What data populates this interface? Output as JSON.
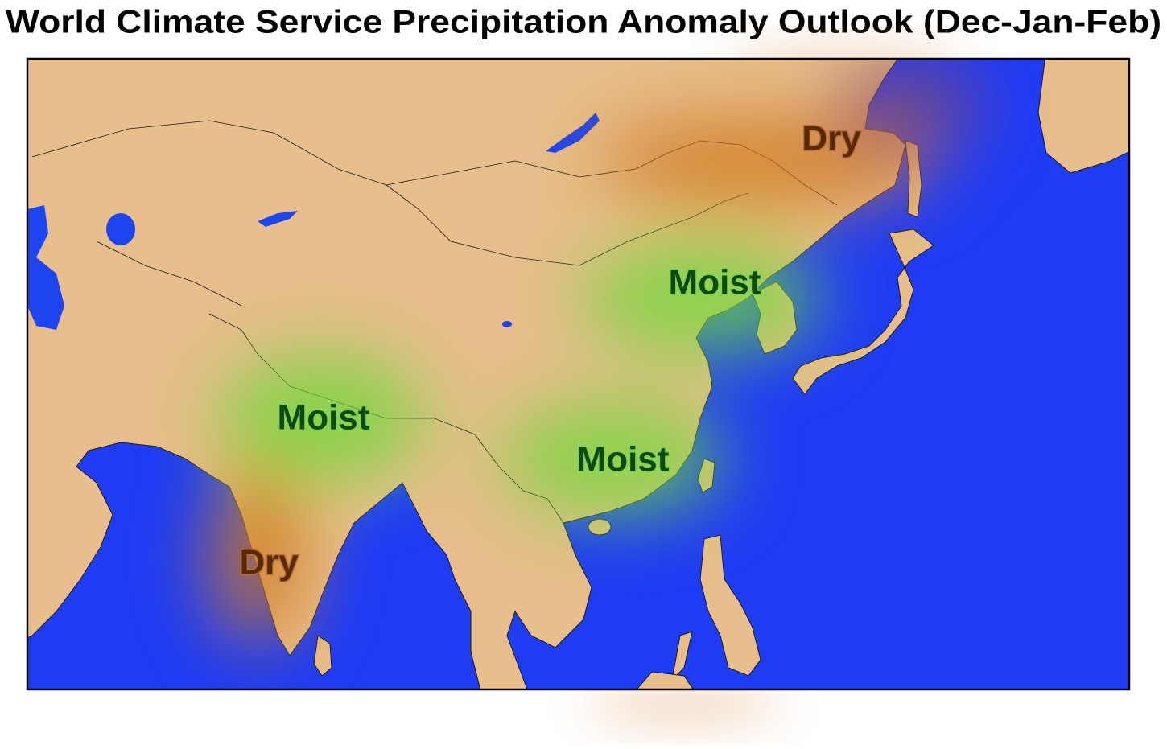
{
  "title": "World Climate Service Precipitation Anomaly Outlook (Dec-Jan-Feb)",
  "labels": [
    "Dry",
    "Moist",
    "Moist",
    "Moist",
    "Dry"
  ]
}
